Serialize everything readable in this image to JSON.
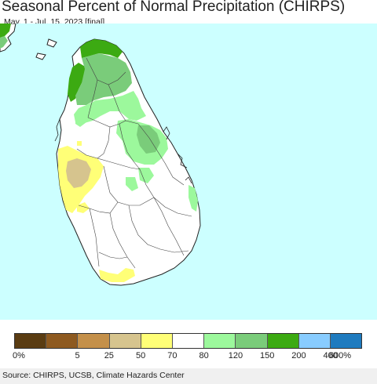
{
  "header": {
    "title": "Seasonal Percent of Normal Precipitation (CHIRPS)",
    "subtitle": "May. 1 - Jul. 15, 2023 [final]"
  },
  "map": {
    "ocean_color": "#ccffff",
    "land_color": "#ffffff",
    "boundary_color": "#333333",
    "region": "Sri Lanka"
  },
  "legend": {
    "colors": [
      "#5a3c12",
      "#8e5a20",
      "#c4904a",
      "#d6c48e",
      "#ffff77",
      "#ffffff",
      "#9cf89c",
      "#7acc7a",
      "#3caa12",
      "#88ccff",
      "#1e7bbf"
    ],
    "labels": [
      "0%",
      "5",
      "25",
      "50",
      "70",
      "80",
      "120",
      "150",
      "200",
      "400",
      "600%"
    ]
  },
  "footer": {
    "source": "Source: CHIRPS, UCSB, Climate Hazards Center"
  }
}
